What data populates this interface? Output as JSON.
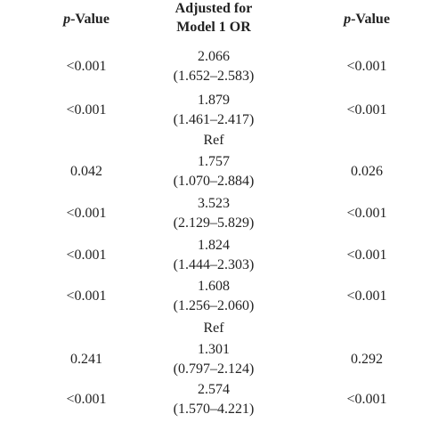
{
  "header": {
    "p_value": {
      "italic": "p",
      "rest": "-Value"
    },
    "adjusted": [
      "Adjusted for",
      "Model 1 OR"
    ],
    "p_value_adjusted": {
      "italic": "p",
      "rest": "-Value"
    }
  },
  "rows": [
    {
      "p_value": "<0.001",
      "or": "2.066",
      "ci": "(1.652–2.583)",
      "p_value_adjusted": "<0.001"
    },
    {
      "p_value": "<0.001",
      "or": "1.879",
      "ci": "(1.461–2.417)",
      "p_value_adjusted": "<0.001"
    },
    {
      "or": "Ref"
    },
    {
      "p_value": "0.042",
      "or": "1.757",
      "ci": "(1.070–2.884)",
      "p_value_adjusted": "0.026"
    },
    {
      "p_value": "<0.001",
      "or": "3.523",
      "ci": "(2.129–5.829)",
      "p_value_adjusted": "<0.001"
    },
    {
      "p_value": "<0.001",
      "or": "1.824",
      "ci": "(1.444–2.303)",
      "p_value_adjusted": "<0.001"
    },
    {
      "p_value": "<0.001",
      "or": "1.608",
      "ci": "(1.256–2.060)",
      "p_value_adjusted": "<0.001"
    },
    {
      "or": "Ref"
    },
    {
      "p_value": "0.241",
      "or": "1.301",
      "ci": "(0.797–2.124)",
      "p_value_adjusted": "0.292"
    },
    {
      "p_value": "<0.001",
      "or": "2.574",
      "ci": "(1.570–4.221)",
      "p_value_adjusted": "<0.001"
    }
  ]
}
